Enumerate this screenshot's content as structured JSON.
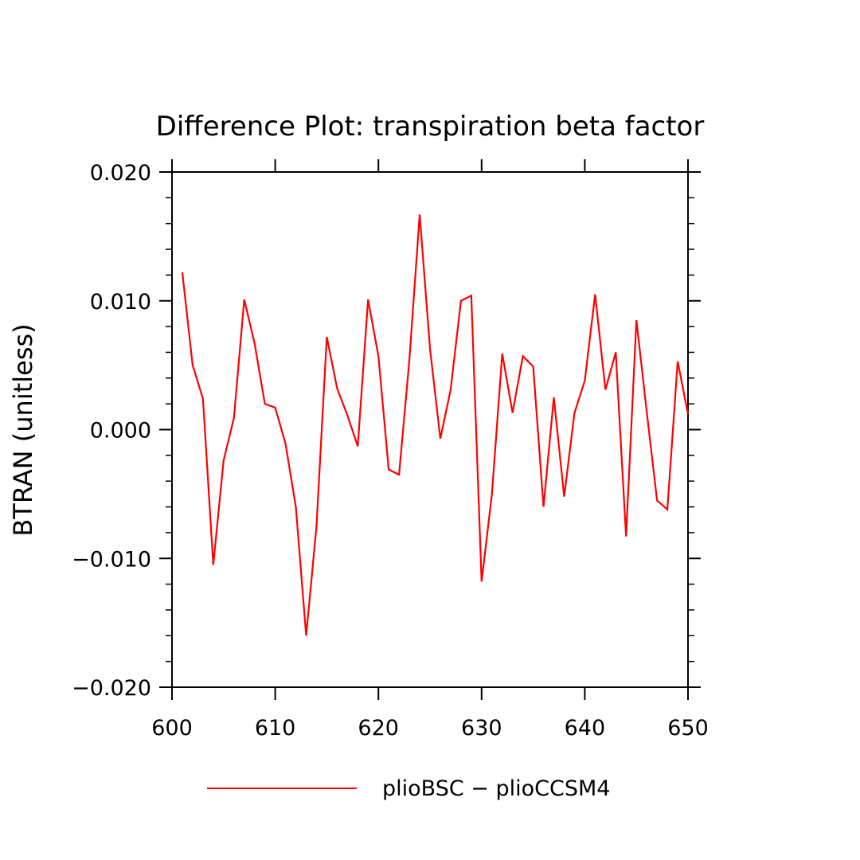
{
  "chart_data": {
    "type": "line",
    "title": "Difference Plot: transpiration beta factor",
    "xlabel": "",
    "ylabel": "BTRAN  (unitless)",
    "xlim": [
      600,
      650
    ],
    "ylim": [
      -0.02,
      0.02
    ],
    "xticks": [
      "600",
      "610",
      "620",
      "630",
      "640",
      "650"
    ],
    "yticks": [
      "0.020",
      "0.010",
      "0.000",
      "−0.010",
      "−0.020"
    ],
    "xtick_values": [
      600,
      610,
      620,
      630,
      640,
      650
    ],
    "ytick_values": [
      0.02,
      0.01,
      0.0,
      -0.01,
      -0.02
    ],
    "grid": false,
    "legend_position": "bottom",
    "series": [
      {
        "name": "plioBSC − plioCCSM4",
        "color": "#ff0000",
        "x": [
          601,
          602,
          603,
          604,
          605,
          606,
          607,
          608,
          609,
          610,
          611,
          612,
          613,
          614,
          615,
          616,
          617,
          618,
          619,
          620,
          621,
          622,
          623,
          624,
          625,
          626,
          627,
          628,
          629,
          630,
          631,
          632,
          633,
          634,
          635,
          636,
          637,
          638,
          639,
          640,
          641,
          642,
          643,
          644,
          645,
          646,
          647,
          648,
          649,
          650
        ],
        "values": [
          0.0122,
          0.005,
          0.0024,
          -0.0105,
          -0.0024,
          0.0009,
          0.0101,
          0.0067,
          0.002,
          0.0017,
          -0.0011,
          -0.006,
          -0.016,
          -0.0075,
          0.0072,
          0.0032,
          0.0011,
          -0.0013,
          0.0101,
          0.0057,
          -0.0031,
          -0.0035,
          0.0054,
          0.0167,
          0.0063,
          -0.0007,
          0.0031,
          0.01,
          0.0104,
          -0.0118,
          -0.005,
          0.0059,
          0.0013,
          0.0057,
          0.0049,
          -0.006,
          0.0025,
          -0.0052,
          0.0013,
          0.0038,
          0.0105,
          0.0031,
          0.006,
          -0.0083,
          0.0085,
          0.0014,
          -0.0055,
          -0.0062,
          0.0053,
          0.0012
        ]
      }
    ]
  }
}
